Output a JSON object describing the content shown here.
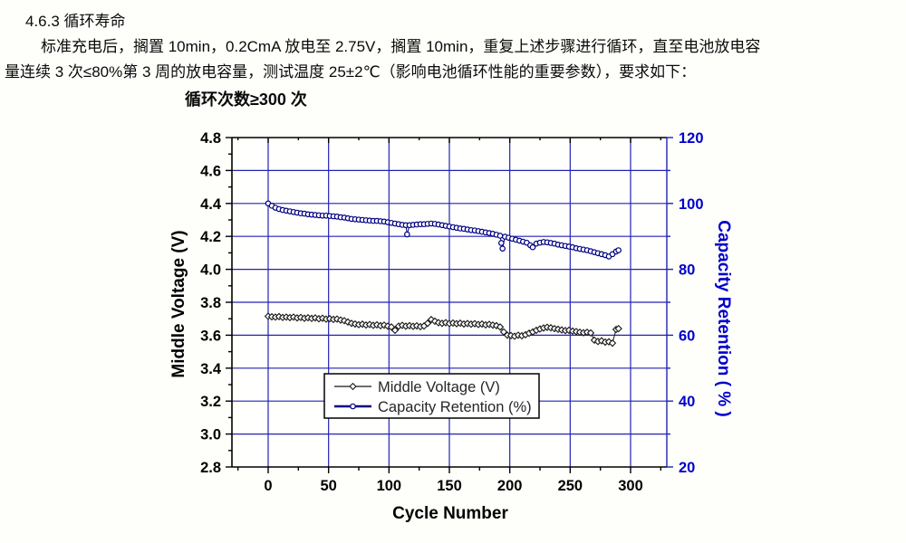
{
  "document": {
    "heading": "4.6.3 循环寿命",
    "para_line1": "标准充电后，搁置 10min，0.2CmA 放电至 2.75V，搁置 10min，重复上述步骤进行循环，直至电池放电容",
    "para_line2": "量连续 3 次≤80%第 3 周的放电容量，测试温度 25±2℃（影响电池循环性能的重要参数），要求如下：",
    "requirement": "循环次数≥300 次"
  },
  "chart_data": {
    "type": "line",
    "xlabel": "Cycle Number",
    "xlim": [
      -30,
      330
    ],
    "x_ticks": [
      0,
      50,
      100,
      150,
      200,
      250,
      300
    ],
    "grid": true,
    "grid_color": "#2323b4",
    "frame_color": "#000000",
    "left_axis": {
      "label": "Middle Voltage (V)",
      "lim": [
        2.8,
        4.8
      ],
      "ticks": [
        2.8,
        3.0,
        3.2,
        3.4,
        3.6,
        3.8,
        4.0,
        4.2,
        4.4,
        4.6,
        4.8
      ],
      "color": "#000000"
    },
    "right_axis": {
      "label": "Capacity Retention ( % )",
      "lim": [
        20,
        120
      ],
      "ticks": [
        20,
        40,
        60,
        80,
        100,
        120
      ],
      "color": "#0000cc"
    },
    "legend": {
      "position": "bottom-center-inside",
      "items": [
        {
          "label": "Middle Voltage (V)",
          "marker": "diamond",
          "color": "#161616",
          "line_width": 1.2
        },
        {
          "label": "Capacity Retention (%)",
          "marker": "circle",
          "color": "#000082",
          "line_width": 2.6
        }
      ]
    },
    "series": [
      {
        "name": "Middle Voltage (V)",
        "axis": "left",
        "marker": "diamond",
        "color": "#161616",
        "points": [
          [
            0,
            3.715
          ],
          [
            3,
            3.712
          ],
          [
            6,
            3.71
          ],
          [
            9,
            3.713
          ],
          [
            12,
            3.708
          ],
          [
            15,
            3.71
          ],
          [
            18,
            3.707
          ],
          [
            21,
            3.71
          ],
          [
            24,
            3.705
          ],
          [
            27,
            3.708
          ],
          [
            30,
            3.703
          ],
          [
            33,
            3.706
          ],
          [
            36,
            3.702
          ],
          [
            39,
            3.705
          ],
          [
            42,
            3.7
          ],
          [
            45,
            3.703
          ],
          [
            48,
            3.698
          ],
          [
            51,
            3.7
          ],
          [
            54,
            3.696
          ],
          [
            57,
            3.698
          ],
          [
            60,
            3.692
          ],
          [
            63,
            3.688
          ],
          [
            66,
            3.68
          ],
          [
            69,
            3.672
          ],
          [
            72,
            3.668
          ],
          [
            75,
            3.664
          ],
          [
            78,
            3.667
          ],
          [
            81,
            3.662
          ],
          [
            84,
            3.665
          ],
          [
            87,
            3.66
          ],
          [
            90,
            3.663
          ],
          [
            93,
            3.658
          ],
          [
            96,
            3.661
          ],
          [
            99,
            3.655
          ],
          [
            102,
            3.65
          ],
          [
            105,
            3.63
          ],
          [
            108,
            3.655
          ],
          [
            111,
            3.66
          ],
          [
            114,
            3.655
          ],
          [
            117,
            3.658
          ],
          [
            120,
            3.654
          ],
          [
            123,
            3.657
          ],
          [
            126,
            3.652
          ],
          [
            129,
            3.656
          ],
          [
            132,
            3.672
          ],
          [
            135,
            3.695
          ],
          [
            138,
            3.685
          ],
          [
            141,
            3.676
          ],
          [
            144,
            3.672
          ],
          [
            147,
            3.676
          ],
          [
            150,
            3.671
          ],
          [
            153,
            3.674
          ],
          [
            156,
            3.67
          ],
          [
            159,
            3.673
          ],
          [
            162,
            3.668
          ],
          [
            165,
            3.671
          ],
          [
            168,
            3.667
          ],
          [
            171,
            3.67
          ],
          [
            174,
            3.665
          ],
          [
            177,
            3.668
          ],
          [
            180,
            3.663
          ],
          [
            183,
            3.666
          ],
          [
            186,
            3.661
          ],
          [
            189,
            3.658
          ],
          [
            192,
            3.65
          ],
          [
            195,
            3.62
          ],
          [
            198,
            3.6
          ],
          [
            201,
            3.598
          ],
          [
            204,
            3.594
          ],
          [
            207,
            3.6
          ],
          [
            210,
            3.597
          ],
          [
            213,
            3.603
          ],
          [
            216,
            3.612
          ],
          [
            219,
            3.62
          ],
          [
            222,
            3.63
          ],
          [
            225,
            3.638
          ],
          [
            228,
            3.644
          ],
          [
            231,
            3.648
          ],
          [
            234,
            3.645
          ],
          [
            237,
            3.64
          ],
          [
            240,
            3.636
          ],
          [
            243,
            3.632
          ],
          [
            246,
            3.628
          ],
          [
            249,
            3.63
          ],
          [
            252,
            3.625
          ],
          [
            255,
            3.622
          ],
          [
            258,
            3.618
          ],
          [
            261,
            3.615
          ],
          [
            264,
            3.618
          ],
          [
            267,
            3.614
          ],
          [
            270,
            3.57
          ],
          [
            273,
            3.562
          ],
          [
            276,
            3.566
          ],
          [
            279,
            3.558
          ],
          [
            282,
            3.56
          ],
          [
            285,
            3.552
          ],
          [
            288,
            3.635
          ],
          [
            290,
            3.64
          ]
        ]
      },
      {
        "name": "Capacity Retention (%)",
        "axis": "right",
        "marker": "circle",
        "color": "#000082",
        "points": [
          [
            0,
            100.0
          ],
          [
            3,
            99.3
          ],
          [
            6,
            98.7
          ],
          [
            9,
            98.3
          ],
          [
            12,
            98.0
          ],
          [
            15,
            97.8
          ],
          [
            18,
            97.6
          ],
          [
            21,
            97.4
          ],
          [
            24,
            97.2
          ],
          [
            27,
            97.0
          ],
          [
            30,
            96.9
          ],
          [
            33,
            96.7
          ],
          [
            36,
            96.6
          ],
          [
            39,
            96.5
          ],
          [
            42,
            96.4
          ],
          [
            45,
            96.3
          ],
          [
            48,
            96.3
          ],
          [
            51,
            96.2
          ],
          [
            54,
            96.1
          ],
          [
            57,
            96.0
          ],
          [
            60,
            95.8
          ],
          [
            63,
            95.7
          ],
          [
            66,
            95.5
          ],
          [
            69,
            95.3
          ],
          [
            72,
            95.2
          ],
          [
            75,
            95.1
          ],
          [
            78,
            95.0
          ],
          [
            81,
            94.9
          ],
          [
            84,
            94.8
          ],
          [
            87,
            94.7
          ],
          [
            90,
            94.7
          ],
          [
            93,
            94.6
          ],
          [
            96,
            94.5
          ],
          [
            99,
            94.3
          ],
          [
            102,
            94.1
          ],
          [
            105,
            93.9
          ],
          [
            108,
            93.7
          ],
          [
            111,
            93.5
          ],
          [
            114,
            93.4
          ],
          [
            115,
            90.6
          ],
          [
            117,
            93.4
          ],
          [
            120,
            93.5
          ],
          [
            123,
            93.6
          ],
          [
            126,
            93.7
          ],
          [
            129,
            93.7
          ],
          [
            132,
            93.8
          ],
          [
            135,
            93.9
          ],
          [
            138,
            93.8
          ],
          [
            141,
            93.6
          ],
          [
            144,
            93.4
          ],
          [
            147,
            93.2
          ],
          [
            150,
            93.0
          ],
          [
            153,
            92.8
          ],
          [
            156,
            92.6
          ],
          [
            159,
            92.4
          ],
          [
            162,
            92.3
          ],
          [
            165,
            92.1
          ],
          [
            168,
            91.9
          ],
          [
            171,
            91.8
          ],
          [
            174,
            91.6
          ],
          [
            177,
            91.4
          ],
          [
            180,
            91.2
          ],
          [
            183,
            91.0
          ],
          [
            186,
            90.8
          ],
          [
            189,
            90.5
          ],
          [
            192,
            90.2
          ],
          [
            193,
            88.0
          ],
          [
            194,
            86.3
          ],
          [
            196,
            89.9
          ],
          [
            199,
            89.6
          ],
          [
            202,
            89.3
          ],
          [
            205,
            89.0
          ],
          [
            208,
            88.7
          ],
          [
            211,
            88.4
          ],
          [
            214,
            88.1
          ],
          [
            217,
            87.3
          ],
          [
            219,
            86.7
          ],
          [
            222,
            87.8
          ],
          [
            225,
            88.1
          ],
          [
            228,
            88.3
          ],
          [
            231,
            88.2
          ],
          [
            234,
            88.0
          ],
          [
            237,
            87.8
          ],
          [
            240,
            87.5
          ],
          [
            243,
            87.3
          ],
          [
            246,
            87.1
          ],
          [
            249,
            86.9
          ],
          [
            252,
            86.7
          ],
          [
            255,
            86.4
          ],
          [
            258,
            86.2
          ],
          [
            261,
            86.0
          ],
          [
            264,
            85.8
          ],
          [
            267,
            85.5
          ],
          [
            270,
            85.2
          ],
          [
            273,
            84.9
          ],
          [
            276,
            84.6
          ],
          [
            279,
            84.3
          ],
          [
            282,
            83.9
          ],
          [
            285,
            84.6
          ],
          [
            288,
            85.4
          ],
          [
            290,
            85.8
          ]
        ]
      }
    ]
  }
}
